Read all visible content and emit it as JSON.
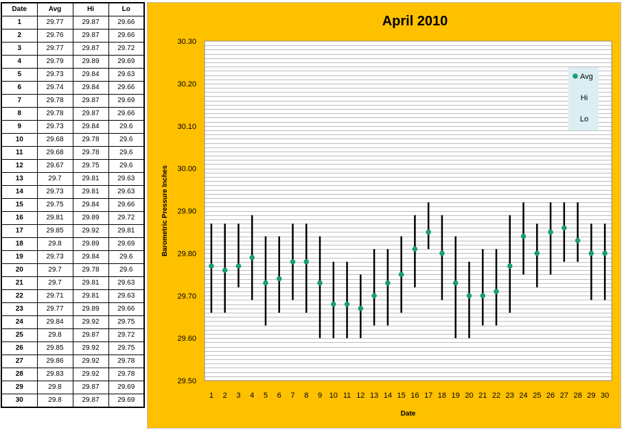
{
  "table": {
    "headers": [
      "Date",
      "Avg",
      "Hi",
      "Lo"
    ],
    "rows": [
      [
        "1",
        "29.77",
        "29.87",
        "29.66"
      ],
      [
        "2",
        "29.76",
        "29.87",
        "29.66"
      ],
      [
        "3",
        "29.77",
        "29.87",
        "29.72"
      ],
      [
        "4",
        "29.79",
        "29.89",
        "29.69"
      ],
      [
        "5",
        "29.73",
        "29.84",
        "29.63"
      ],
      [
        "6",
        "29.74",
        "29.84",
        "29.66"
      ],
      [
        "7",
        "29.78",
        "29.87",
        "29.69"
      ],
      [
        "8",
        "29.78",
        "29.87",
        "29.66"
      ],
      [
        "9",
        "29.73",
        "29.84",
        "29.6"
      ],
      [
        "10",
        "29.68",
        "29.78",
        "29.6"
      ],
      [
        "11",
        "29.68",
        "29.78",
        "29.6"
      ],
      [
        "12",
        "29.67",
        "29.75",
        "29.6"
      ],
      [
        "13",
        "29.7",
        "29.81",
        "29.63"
      ],
      [
        "14",
        "29.73",
        "29.81",
        "29.63"
      ],
      [
        "15",
        "29.75",
        "29.84",
        "29.66"
      ],
      [
        "16",
        "29.81",
        "29.89",
        "29.72"
      ],
      [
        "17",
        "29.85",
        "29.92",
        "29.81"
      ],
      [
        "18",
        "29.8",
        "29.89",
        "29.69"
      ],
      [
        "19",
        "29.73",
        "29.84",
        "29.6"
      ],
      [
        "20",
        "29.7",
        "29.78",
        "29.6"
      ],
      [
        "21",
        "29.7",
        "29.81",
        "29.63"
      ],
      [
        "22",
        "29.71",
        "29.81",
        "29.63"
      ],
      [
        "23",
        "29.77",
        "29.89",
        "29.66"
      ],
      [
        "24",
        "29.84",
        "29.92",
        "29.75"
      ],
      [
        "25",
        "29.8",
        "29.87",
        "29.72"
      ],
      [
        "26",
        "29.85",
        "29.92",
        "29.75"
      ],
      [
        "27",
        "29.86",
        "29.92",
        "29.78"
      ],
      [
        "28",
        "29.83",
        "29.92",
        "29.78"
      ],
      [
        "29",
        "29.8",
        "29.87",
        "29.69"
      ],
      [
        "30",
        "29.8",
        "29.87",
        "29.69"
      ]
    ]
  },
  "chart_data": {
    "type": "scatter",
    "title": "April 2010",
    "xlabel": "Date",
    "ylabel": "Barometric Pressure Inches",
    "ylim": [
      29.5,
      30.3
    ],
    "ytick_labels": [
      "29.50",
      "29.60",
      "29.70",
      "29.80",
      "29.90",
      "30.00",
      "30.10",
      "30.20",
      "30.30"
    ],
    "x": [
      1,
      2,
      3,
      4,
      5,
      6,
      7,
      8,
      9,
      10,
      11,
      12,
      13,
      14,
      15,
      16,
      17,
      18,
      19,
      20,
      21,
      22,
      23,
      24,
      25,
      26,
      27,
      28,
      29,
      30
    ],
    "grid": true,
    "legend_position": "top-right",
    "series": [
      {
        "name": "Avg",
        "values": [
          29.77,
          29.76,
          29.77,
          29.79,
          29.73,
          29.74,
          29.78,
          29.78,
          29.73,
          29.68,
          29.68,
          29.67,
          29.7,
          29.73,
          29.75,
          29.81,
          29.85,
          29.8,
          29.73,
          29.7,
          29.7,
          29.71,
          29.77,
          29.84,
          29.8,
          29.85,
          29.86,
          29.83,
          29.8,
          29.8
        ],
        "color": "#1a9e6e"
      },
      {
        "name": "Hi",
        "values": [
          29.87,
          29.87,
          29.87,
          29.89,
          29.84,
          29.84,
          29.87,
          29.87,
          29.84,
          29.78,
          29.78,
          29.75,
          29.81,
          29.81,
          29.84,
          29.89,
          29.92,
          29.89,
          29.84,
          29.78,
          29.81,
          29.81,
          29.89,
          29.92,
          29.87,
          29.92,
          29.92,
          29.92,
          29.87,
          29.87
        ],
        "color": "#000000"
      },
      {
        "name": "Lo",
        "values": [
          29.66,
          29.66,
          29.72,
          29.69,
          29.63,
          29.66,
          29.69,
          29.66,
          29.6,
          29.6,
          29.6,
          29.6,
          29.63,
          29.63,
          29.66,
          29.72,
          29.81,
          29.69,
          29.6,
          29.6,
          29.63,
          29.63,
          29.66,
          29.75,
          29.72,
          29.75,
          29.78,
          29.78,
          29.69,
          29.69
        ],
        "color": "#000000"
      }
    ]
  },
  "colors": {
    "panel_background": "#ffc000",
    "plot_background": "#ffffff",
    "gridline": "#a6a6a6",
    "legend_background": "#dbeef4",
    "avg_marker": "#1a9e6e",
    "range_line": "#000000"
  }
}
